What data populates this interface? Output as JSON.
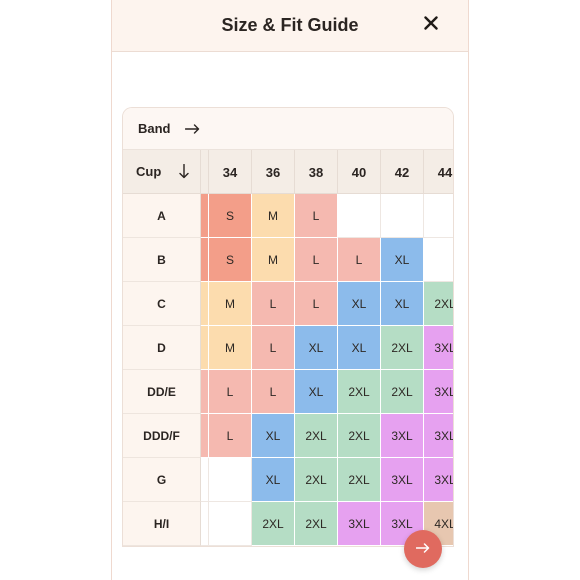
{
  "modal": {
    "title": "Size & Fit Guide"
  },
  "table": {
    "band_label": "Band",
    "cup_label": "Cup",
    "band_sizes": [
      "34",
      "36",
      "38",
      "40",
      "42",
      "44"
    ],
    "cups": [
      "A",
      "B",
      "C",
      "D",
      "DD/E",
      "DDD/F",
      "G",
      "H/I"
    ],
    "rows": [
      [
        "S",
        "M",
        "L",
        "",
        "",
        ""
      ],
      [
        "S",
        "M",
        "L",
        "L",
        "XL",
        ""
      ],
      [
        "M",
        "L",
        "L",
        "XL",
        "XL",
        "2XL"
      ],
      [
        "M",
        "L",
        "XL",
        "XL",
        "2XL",
        "3XL"
      ],
      [
        "L",
        "L",
        "XL",
        "2XL",
        "2XL",
        "3XL"
      ],
      [
        "L",
        "XL",
        "2XL",
        "2XL",
        "3XL",
        "3XL"
      ],
      [
        "",
        "XL",
        "2XL",
        "2XL",
        "3XL",
        "3XL"
      ],
      [
        "",
        "2XL",
        "2XL",
        "3XL",
        "3XL",
        "4XL"
      ]
    ]
  },
  "colors": {
    "S": "#f39e89",
    "M": "#fcdcae",
    "L": "#f5b9b0",
    "XL": "#8cbbeb",
    "2XL": "#b5ddc5",
    "3XL": "#e6a1f0",
    "4XL": "#e7c7b0"
  }
}
